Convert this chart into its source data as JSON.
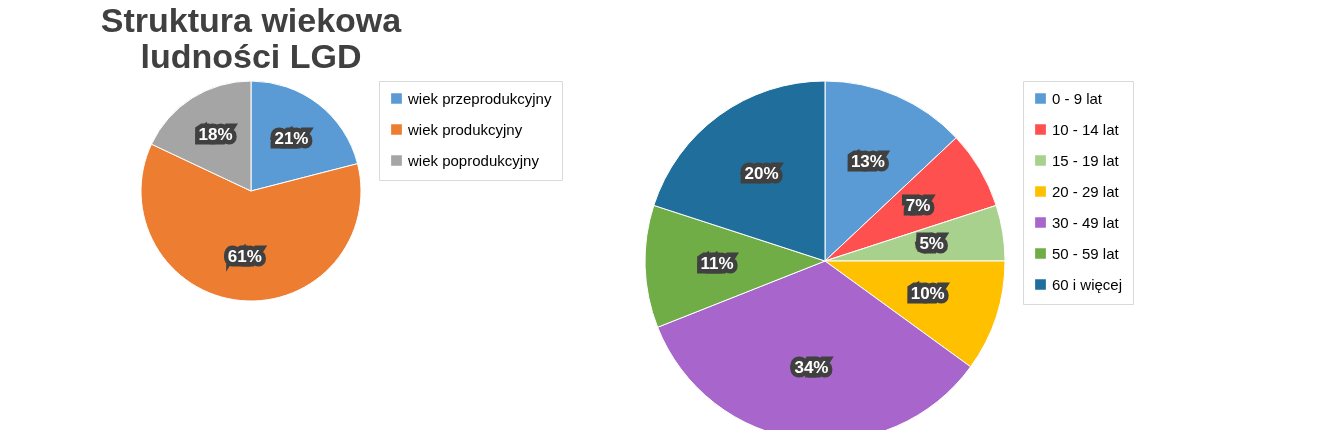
{
  "chart_data": [
    {
      "type": "pie",
      "title": [
        "Struktura wiekowa",
        "ludności LGD"
      ],
      "categories": [
        "wiek przeprodukcyjny",
        "wiek produkcyjny",
        "wiek poprodukcyjny"
      ],
      "values": [
        21,
        61,
        18
      ],
      "colors": [
        "#5b9bd5",
        "#ed7d31",
        "#a5a5a5"
      ],
      "value_labels": [
        "21%",
        "61%",
        "18%"
      ],
      "legend": "right"
    },
    {
      "type": "pie",
      "categories": [
        "0 - 9 lat",
        "10 - 14 lat",
        "15 - 19 lat",
        "20 - 29 lat",
        "30 - 49 lat",
        "50 - 59 lat",
        "60 i więcej"
      ],
      "values": [
        13,
        7,
        5,
        10,
        34,
        11,
        20
      ],
      "colors": [
        "#5b9bd5",
        "#ff5050",
        "#a9d18e",
        "#ffc000",
        "#a866cc",
        "#70ad47",
        "#1f6e9c"
      ],
      "value_labels": [
        "13%",
        "7%",
        "5%",
        "10%",
        "34%",
        "11%",
        "20%"
      ],
      "legend": "right"
    }
  ]
}
